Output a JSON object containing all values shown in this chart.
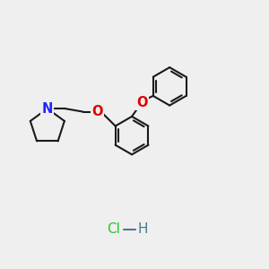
{
  "bg_color": "#efefef",
  "bond_color": "#1a1a1a",
  "n_color": "#2222ff",
  "o_color": "#dd0000",
  "hcl_color": "#22cc22",
  "hcl_h_color": "#4a7a8a",
  "line_width": 1.5,
  "font_size": 10.5,
  "xlim": [
    0,
    10
  ],
  "ylim": [
    0,
    10
  ]
}
